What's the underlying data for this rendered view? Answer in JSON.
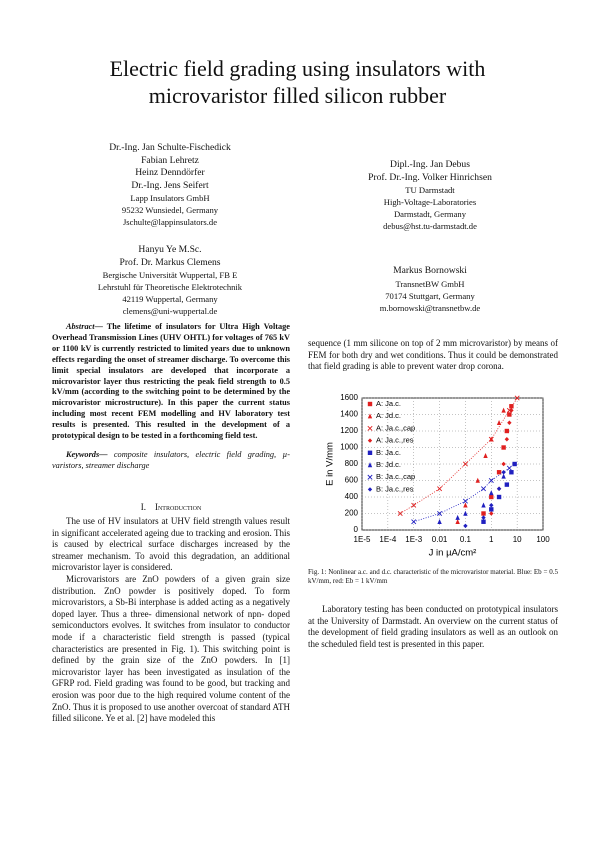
{
  "header": {
    "title_lines": [
      "Electric field grading using insulators with",
      "microvaristor filled silicon rubber"
    ]
  },
  "authors": [
    {
      "names": [
        "Dr.-Ing. Jan Schulte-Fischedick",
        "Fabian Lehretz",
        "Heinz Denndörfer",
        "Dr.-Ing. Jens Seifert"
      ],
      "affiliation": [
        "Lapp Insulators GmbH",
        "95232 Wunsiedel, Germany",
        "Jschulte@lappinsulators.de"
      ]
    },
    {
      "names": [
        "Hanyu Ye M.Sc.",
        "Prof. Dr. Markus Clemens"
      ],
      "affiliation": [
        "Bergische Universität Wuppertal, FB E",
        "Lehrstuhl für Theoretische Elektrotechnik",
        "42119 Wuppertal, Germany",
        "clemens@uni-wuppertal.de"
      ]
    },
    {
      "names": [
        "Dipl.-Ing. Jan Debus",
        "Prof. Dr.-Ing. Volker Hinrichsen"
      ],
      "affiliation": [
        "TU Darmstadt",
        "High-Voltage-Laboratories",
        "Darmstadt, Germany",
        "debus@hst.tu-darmstadt.de"
      ]
    },
    {
      "names": [
        "Markus Bornowski"
      ],
      "affiliation": [
        "TransnetBW GmbH",
        "70174 Stuttgart, Germany",
        "m.bornowski@transnetbw.de"
      ]
    }
  ],
  "abstract": {
    "label": "Abstract—",
    "text": "The lifetime of insulators for Ultra High Voltage Overhead Transmission Lines (UHV OHTL) for voltages of 765 kV or 1100 kV is currently restricted to limited years due to unknown effects regarding the onset of streamer discharge. To overcome this limit special insulators are developed that incorporate a microvaristor layer thus restricting the peak field strength to 0.5 kV/mm (according to the switching point to be determined by the microvaristor microstructure). In this paper the current status including most recent FEM modelling and HV laboratory test results is presented. This resulted in the development of a prototypical design to be tested in a forthcoming field test."
  },
  "keywords": {
    "label": "Keywords—",
    "text": "composite insulators, electric field grading, µ-varistors, streamer discharge"
  },
  "section": {
    "number": "I.",
    "title": "Introduction"
  },
  "left_paragraphs": [
    "The use of HV insulators at UHV field strength values result in significant accelerated ageing due to tracking and erosion. This is caused by electrical surface discharges increased by the streamer mechanism. To avoid this degradation, an additional microvaristor layer is considered.",
    "Microvaristors are ZnO powders of a given grain size distribution. ZnO powder is positively doped. To form microvaristors, a Sb-Bi interphase is added acting as a negatively doped layer. Thus a three- dimensional network of npn- doped semiconductors evolves. It switches from insulator to conductor mode if a characteristic field strength is passed (typical characteristics are presented in Fig. 1). This switching point is defined by the grain size of the ZnO powders. In [1] microvaristor layer has been investigated as insulation of the GFRP rod. Field grading was found to be good, but tracking and erosion was poor due to the high required volume content of the ZnO. Thus it is proposed to use another overcoat of standard ATH filled silicone. Ye et al. [2] have modeled this"
  ],
  "right_paragraphs": [
    "sequence (1 mm silicone on top of 2 mm microvaristor) by means of FEM for both dry and wet conditions. Thus it could be demonstrated that field grading is able to prevent water drop corona.",
    "Laboratory testing has been conducted on prototypical insulators at the University of Darmstadt. An overview on the current status of the development of field grading insulators as well as an outlook on the scheduled field test is presented in this paper."
  ],
  "figure": {
    "caption": "Fig. 1: Nonlinear a.c. and d.c. characteristic of the microvaristor material. Blue: Eb = 0.5 kV/mm, red: Eb = 1 kV/mm",
    "chart_data": {
      "type": "scatter",
      "x_label": "J in µA/cm²",
      "y_label": "E in V/mm",
      "x_log": true,
      "grid": true,
      "xlim": [
        1e-05,
        100
      ],
      "ylim": [
        0,
        1600
      ],
      "xticks": [
        {
          "value": 1e-05,
          "label": "1E-5"
        },
        {
          "value": 0.0001,
          "label": "1E-4"
        },
        {
          "value": 0.001,
          "label": "1E-3"
        },
        0.01,
        0.1,
        1,
        10,
        100
      ],
      "yticks": [
        0,
        200,
        400,
        600,
        800,
        1000,
        1200,
        1400,
        1600
      ],
      "series": [
        {
          "name": "A: Ja.c.",
          "color": "#e02020",
          "marker": "square",
          "x": [
            0.5,
            1,
            2,
            3,
            4,
            5,
            6
          ],
          "values": [
            200,
            400,
            700,
            1000,
            1200,
            1400,
            1500
          ]
        },
        {
          "name": "A: Jd.c.",
          "color": "#e02020",
          "marker": "triangle",
          "x": [
            0.05,
            0.1,
            0.3,
            0.6,
            1,
            2,
            3
          ],
          "values": [
            100,
            300,
            600,
            900,
            1100,
            1300,
            1450
          ]
        },
        {
          "name": "A: Ja.c.,cap",
          "color": "#e02020",
          "marker": "cross",
          "line_style": "dotted",
          "x": [
            0.0003,
            0.001,
            0.01,
            0.1,
            1,
            5,
            10
          ],
          "values": [
            200,
            300,
            500,
            800,
            1100,
            1450,
            1600
          ]
        },
        {
          "name": "A: Ja.c.,res",
          "color": "#e02020",
          "marker": "diamond",
          "x": [
            1,
            2,
            3,
            4,
            5,
            6
          ],
          "values": [
            200,
            500,
            800,
            1100,
            1300,
            1450
          ]
        },
        {
          "name": "B: Ja.c.",
          "color": "#2020c0",
          "marker": "square",
          "x": [
            0.5,
            1,
            2,
            4,
            6,
            8
          ],
          "values": [
            100,
            250,
            400,
            550,
            700,
            800
          ]
        },
        {
          "name": "B: Jd.c.",
          "color": "#2020c0",
          "marker": "triangle",
          "x": [
            0.01,
            0.05,
            0.1,
            0.5,
            1,
            3
          ],
          "values": [
            100,
            150,
            200,
            300,
            450,
            650
          ]
        },
        {
          "name": "B: Ja.c.,cap",
          "color": "#2020c0",
          "marker": "cross",
          "line_style": "dotted",
          "x": [
            0.001,
            0.01,
            0.1,
            0.5,
            1,
            5
          ],
          "values": [
            100,
            200,
            350,
            500,
            600,
            750
          ]
        },
        {
          "name": "B: Ja.c.,res",
          "color": "#2020c0",
          "marker": "diamond",
          "x": [
            0.1,
            0.5,
            1,
            2,
            3
          ],
          "values": [
            50,
            150,
            300,
            500,
            700
          ]
        }
      ]
    }
  }
}
